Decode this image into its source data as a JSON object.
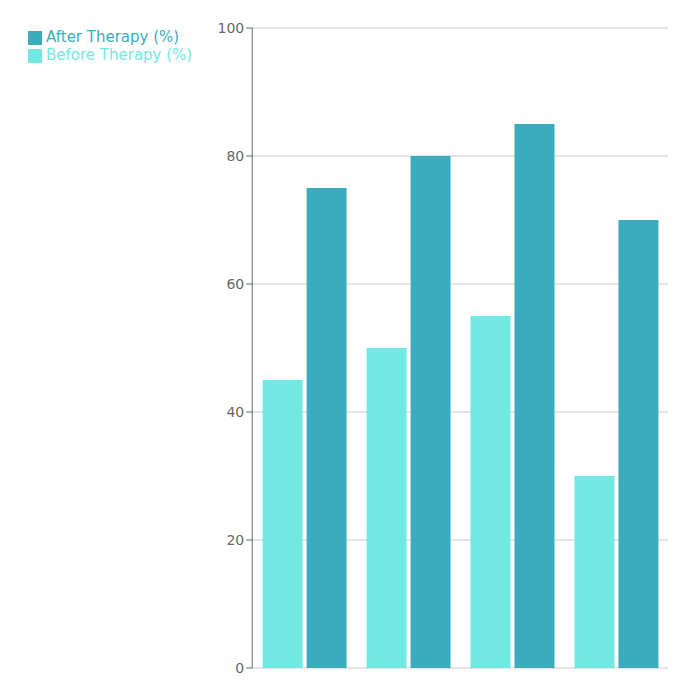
{
  "chart_data": {
    "type": "bar",
    "categories": [
      null,
      null,
      null,
      null
    ],
    "series": [
      {
        "name": "Before Therapy (%)",
        "color": "#72E8E3",
        "values": [
          45,
          50,
          55,
          30
        ]
      },
      {
        "name": "After Therapy (%)",
        "color": "#3AACBE",
        "values": [
          75,
          80,
          85,
          70
        ]
      }
    ],
    "ylim": [
      0,
      100
    ],
    "yticks": [
      0,
      20,
      40,
      60,
      80,
      100
    ],
    "grid": true,
    "legend": "upper left",
    "tick_labels": "y"
  }
}
